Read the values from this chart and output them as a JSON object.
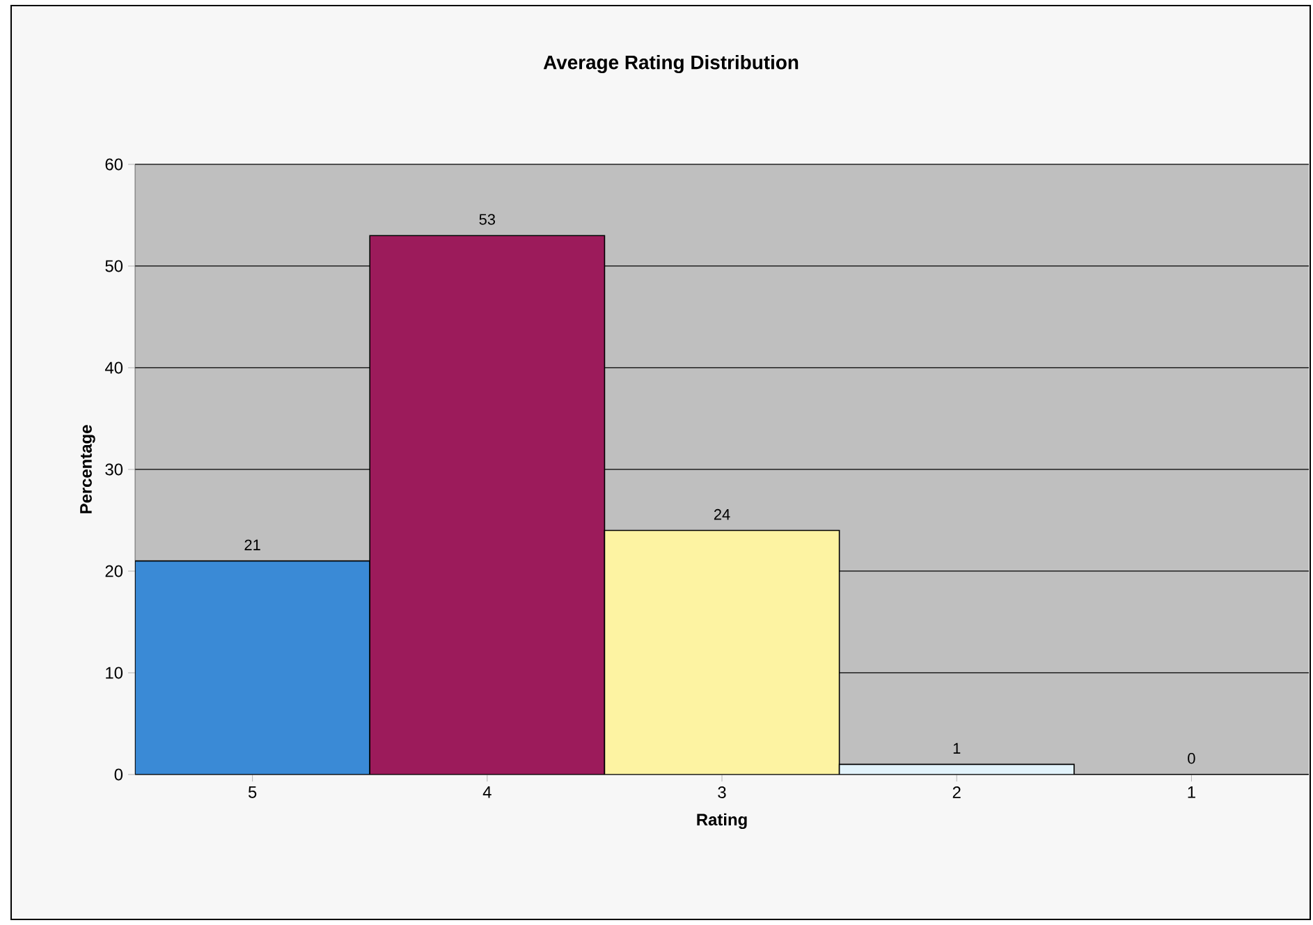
{
  "chart_data": {
    "type": "bar",
    "title": "Average Rating Distribution",
    "xlabel": "Rating",
    "ylabel": "Percentage",
    "categories": [
      "5",
      "4",
      "3",
      "2",
      "1"
    ],
    "values": [
      21,
      53,
      24,
      1,
      0
    ],
    "colors": [
      "#3a8ad6",
      "#9c1b5b",
      "#fdf3a2",
      "#e2f3fb",
      "#e2f3fb"
    ],
    "ylim": [
      0,
      60
    ],
    "yticks": [
      0,
      10,
      20,
      30,
      40,
      50,
      60
    ],
    "grid": "y",
    "data_labels": true
  }
}
